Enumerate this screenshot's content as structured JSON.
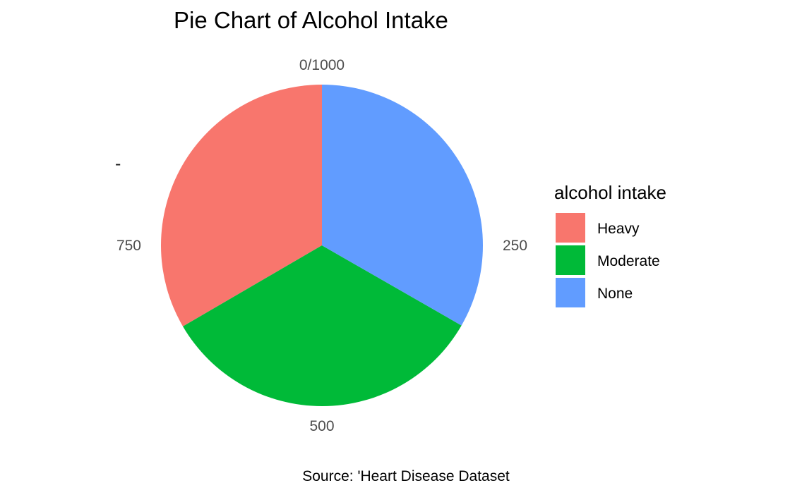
{
  "chart_data": {
    "type": "pie",
    "title": "Pie Chart of Alcohol Intake",
    "ylabel": "-",
    "categories": [
      "Heavy",
      "Moderate",
      "None"
    ],
    "values": [
      334,
      333,
      333
    ],
    "colors": [
      "#F8766D",
      "#00BA38",
      "#619CFF"
    ],
    "angular_ticks": [
      {
        "value": 0,
        "label": "0/1000"
      },
      {
        "value": 250,
        "label": "250"
      },
      {
        "value": 500,
        "label": "500"
      },
      {
        "value": 750,
        "label": "750"
      }
    ],
    "total": 1000,
    "direction": "clockwise",
    "start": "top",
    "legend": {
      "title": "alcohol intake",
      "placement": "right"
    },
    "caption": "Source: 'Heart Disease Dataset"
  }
}
